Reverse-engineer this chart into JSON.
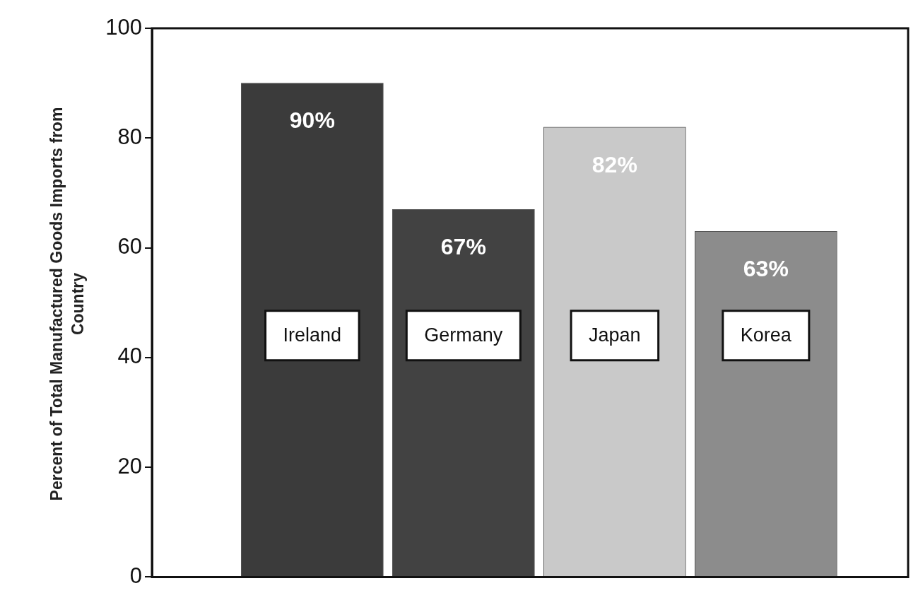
{
  "chart_data": {
    "type": "bar",
    "ylabel": "Percent of Total Manufactured Goods Imports from Country",
    "categories": [
      "Ireland",
      "Germany",
      "Japan",
      "Korea"
    ],
    "values": [
      90,
      67,
      82,
      63
    ],
    "colors": [
      "#3b3b3b",
      "#424242",
      "#c9c9c9",
      "#8c8c8c"
    ],
    "value_labels": [
      "90%",
      "67%",
      "82%",
      "63%"
    ],
    "ylim": [
      0,
      100
    ],
    "yticks": [
      0,
      20,
      40,
      60,
      80,
      100
    ],
    "grid": false,
    "legend": false,
    "tick_labels": "y"
  }
}
